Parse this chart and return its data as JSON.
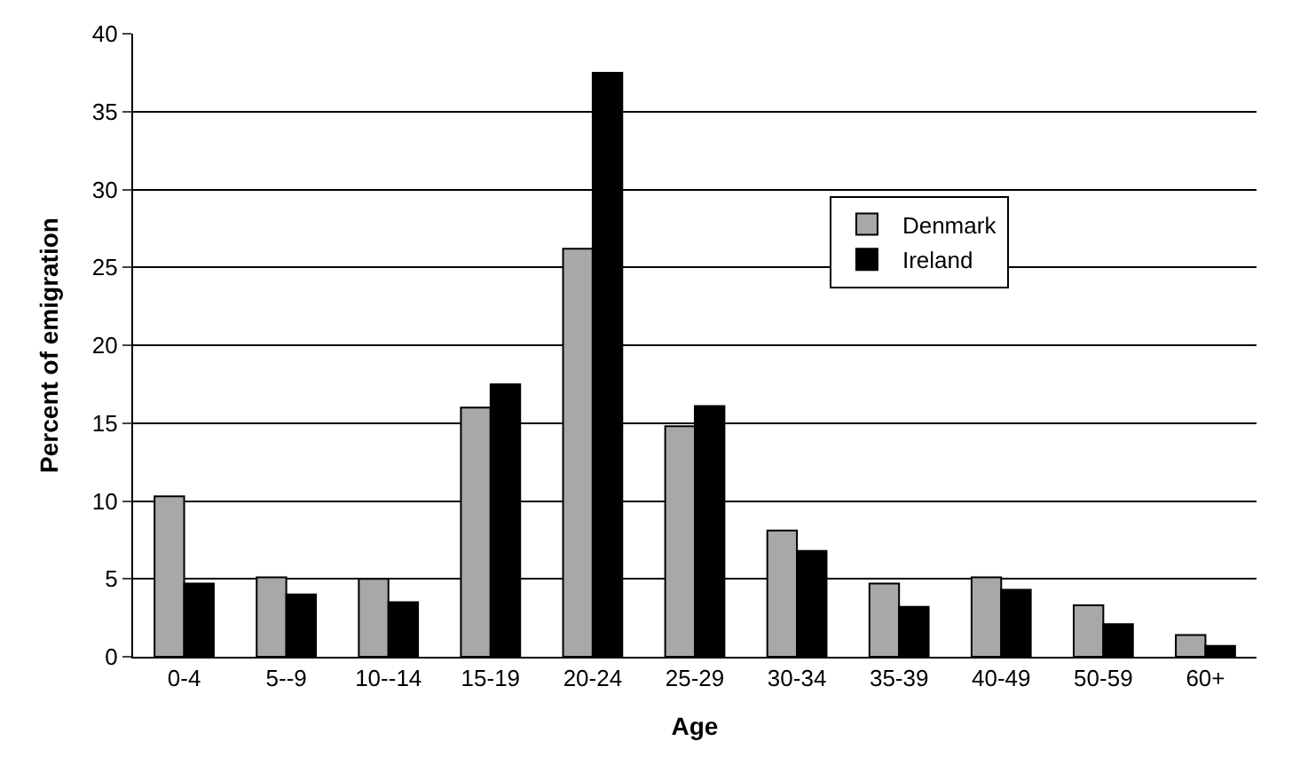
{
  "chart_data": {
    "type": "bar",
    "xlabel": "Age",
    "ylabel": "Percent of emigration",
    "categories": [
      "0-4",
      "5--9",
      "10--14",
      "15-19",
      "20-24",
      "25-29",
      "30-34",
      "35-39",
      "40-49",
      "50-59",
      "60+"
    ],
    "series": [
      {
        "name": "Denmark",
        "color": "#a8a8a8",
        "values": [
          10.3,
          5.1,
          5.0,
          16.0,
          26.2,
          14.8,
          8.1,
          4.7,
          5.1,
          3.3,
          1.4
        ]
      },
      {
        "name": "Ireland",
        "color": "#000000",
        "values": [
          4.7,
          4.0,
          3.5,
          17.5,
          37.5,
          16.1,
          6.8,
          3.2,
          4.3,
          2.1,
          0.7
        ]
      }
    ],
    "ylim": [
      0,
      40
    ],
    "yticks": [
      0,
      5,
      10,
      15,
      20,
      25,
      30,
      35,
      40
    ],
    "grid": "y",
    "legend": "top right"
  }
}
